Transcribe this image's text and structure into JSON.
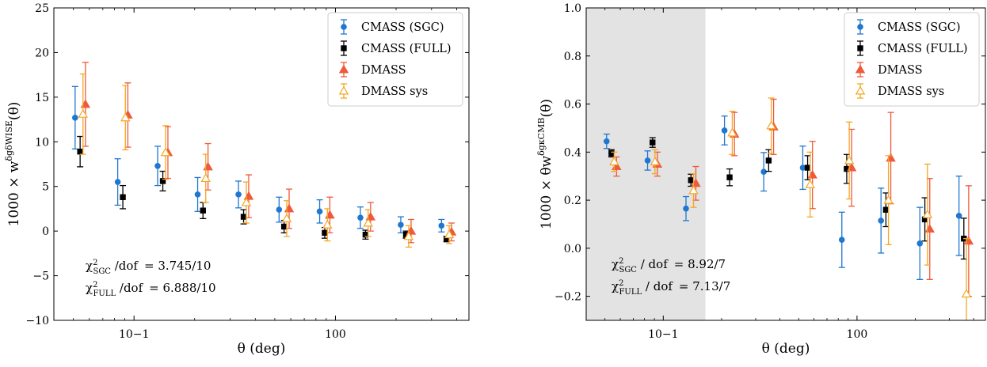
{
  "series_styles": [
    {
      "name": "CMASS (SGC)",
      "color": "#1f77d0",
      "marker": "circle",
      "filled": true
    },
    {
      "name": "CMASS (FULL)",
      "color": "#000000",
      "marker": "square",
      "filled": true
    },
    {
      "name": "DMASS",
      "color": "#ef5a3a",
      "marker": "triangle",
      "filled": true
    },
    {
      "name": "DMASS sys",
      "color": "#f5a623",
      "marker": "triangle",
      "filled": false
    }
  ],
  "chart_data": [
    {
      "type": "scatter",
      "xlabel": "θ (deg)",
      "ylabel": "1000 × w^{δgδWISE}(θ)",
      "ylabel_parts": {
        "prefix": "1000 × w",
        "sup": "δgδWISE",
        "suffix": "(θ)"
      },
      "xscale": "log",
      "xlim": [
        0.04,
        4.6
      ],
      "ylim": [
        -10,
        25
      ],
      "x_ticks": [
        0.1,
        1
      ],
      "x_tick_labels": [
        "10−1",
        "100"
      ],
      "y_ticks": [
        -10,
        -5,
        0,
        5,
        10,
        15,
        20,
        25
      ],
      "y_tick_labels": [
        "−10",
        "−5",
        "0",
        "5",
        "10",
        "15",
        "20",
        "25"
      ],
      "legend": "top-right",
      "shaded_region": null,
      "annotations": [
        {
          "main": "χ",
          "sup": "2",
          "sub": "SGC",
          "tail": " /dof",
          "value": "=  3.745/10"
        },
        {
          "main": "χ",
          "sup": "2",
          "sub": "FULL",
          "tail": " /dof",
          "value": "=  6.888/10"
        }
      ],
      "series": [
        {
          "name": "CMASS (SGC)",
          "x": [
            0.051,
            0.083,
            0.131,
            0.207,
            0.33,
            0.525,
            0.835,
            1.33,
            2.11,
            3.36
          ],
          "y": [
            12.7,
            5.5,
            7.3,
            4.1,
            4.1,
            2.4,
            2.2,
            1.5,
            0.7,
            0.6
          ],
          "err": [
            3.5,
            2.6,
            2.2,
            1.9,
            1.5,
            1.4,
            1.3,
            1.2,
            0.9,
            0.7
          ]
        },
        {
          "name": "CMASS (FULL)",
          "x": [
            0.054,
            0.088,
            0.139,
            0.22,
            0.35,
            0.556,
            0.885,
            1.41,
            2.24,
            3.56
          ],
          "y": [
            8.9,
            3.8,
            5.6,
            2.3,
            1.6,
            0.5,
            -0.2,
            -0.4,
            -0.4,
            -0.9
          ],
          "err": [
            1.7,
            1.3,
            1.1,
            0.9,
            0.8,
            0.7,
            0.6,
            0.5,
            0.4,
            0.3
          ]
        },
        {
          "name": "DMASS",
          "x": [
            0.0574,
            0.0932,
            0.1473,
            0.233,
            0.371,
            0.589,
            0.938,
            1.494,
            2.374,
            3.77
          ],
          "y": [
            14.2,
            13.0,
            8.8,
            7.2,
            3.9,
            2.5,
            1.8,
            1.6,
            0.0,
            -0.1
          ],
          "err": [
            4.7,
            3.6,
            2.9,
            2.6,
            2.4,
            2.2,
            2.0,
            1.6,
            1.3,
            1.0
          ]
        },
        {
          "name": "DMASS sys",
          "x": [
            0.0558,
            0.0906,
            0.1433,
            0.227,
            0.361,
            0.573,
            0.912,
            1.453,
            2.309,
            3.67
          ],
          "y": [
            13.1,
            12.7,
            8.8,
            5.9,
            3.2,
            1.4,
            0.7,
            0.9,
            -0.6,
            -0.4
          ],
          "err": [
            4.5,
            3.6,
            3.0,
            2.7,
            2.3,
            2.0,
            1.8,
            1.5,
            1.2,
            1.0
          ]
        }
      ]
    },
    {
      "type": "scatter",
      "xlabel": "θ (deg)",
      "ylabel": "1000 × θw^{δgκCMB}(θ)",
      "ylabel_parts": {
        "prefix": "1000 × θw",
        "sup": "δgκCMB",
        "suffix": "(θ)"
      },
      "xscale": "log",
      "xlim": [
        0.04,
        4.6
      ],
      "ylim": [
        -0.3,
        1.0
      ],
      "x_ticks": [
        0.1,
        1
      ],
      "x_tick_labels": [
        "10−1",
        "100"
      ],
      "y_ticks": [
        -0.2,
        0.0,
        0.2,
        0.4,
        0.6,
        0.8,
        1.0
      ],
      "y_tick_labels": [
        "−0.2",
        "0.0",
        "0.2",
        "0.4",
        "0.6",
        "0.8",
        "1.0"
      ],
      "legend": "top-right",
      "shaded_region": {
        "xmin": 0.04,
        "xmax": 0.165,
        "color": "#e3e3e3"
      },
      "annotations": [
        {
          "main": "χ",
          "sup": "2",
          "sub": "SGC",
          "tail": " / dof",
          "value": "= 8.92/7"
        },
        {
          "main": "χ",
          "sup": "2",
          "sub": "FULL",
          "tail": " / dof",
          "value": "= 7.13/7"
        }
      ],
      "series": [
        {
          "name": "CMASS (SGC)",
          "x": [
            0.051,
            0.083,
            0.131,
            0.207,
            0.33,
            0.525,
            0.835,
            1.33,
            2.11,
            3.36
          ],
          "y": [
            0.445,
            0.365,
            0.165,
            0.49,
            0.318,
            0.335,
            0.035,
            0.115,
            0.02,
            0.135
          ],
          "err": [
            0.03,
            0.04,
            0.05,
            0.06,
            0.08,
            0.09,
            0.115,
            0.135,
            0.15,
            0.165
          ]
        },
        {
          "name": "CMASS (FULL)",
          "x": [
            0.054,
            0.088,
            0.139,
            0.22,
            0.35,
            0.556,
            0.885,
            1.41,
            2.24,
            3.56
          ],
          "y": [
            0.395,
            0.44,
            0.283,
            0.295,
            0.365,
            0.335,
            0.33,
            0.16,
            0.12,
            0.04
          ],
          "err": [
            0.015,
            0.02,
            0.025,
            0.035,
            0.045,
            0.05,
            0.06,
            0.07,
            0.09,
            0.085
          ]
        },
        {
          "name": "DMASS",
          "x": [
            0.0574,
            0.0932,
            0.1473,
            0.233,
            0.371,
            0.589,
            0.938,
            1.494,
            2.374,
            3.77
          ],
          "y": [
            0.34,
            0.35,
            0.27,
            0.475,
            0.505,
            0.305,
            0.335,
            0.375,
            0.08,
            0.03
          ],
          "err": [
            0.04,
            0.05,
            0.07,
            0.09,
            0.115,
            0.14,
            0.16,
            0.19,
            0.21,
            0.23
          ]
        },
        {
          "name": "DMASS sys",
          "x": [
            0.0558,
            0.0906,
            0.1433,
            0.227,
            0.361,
            0.573,
            0.912,
            1.453,
            2.309,
            3.67
          ],
          "y": [
            0.36,
            0.36,
            0.24,
            0.48,
            0.51,
            0.265,
            0.365,
            0.2,
            0.14,
            -0.19
          ],
          "err": [
            0.04,
            0.05,
            0.07,
            0.09,
            0.115,
            0.135,
            0.16,
            0.185,
            0.21,
            0.23
          ]
        }
      ]
    }
  ]
}
